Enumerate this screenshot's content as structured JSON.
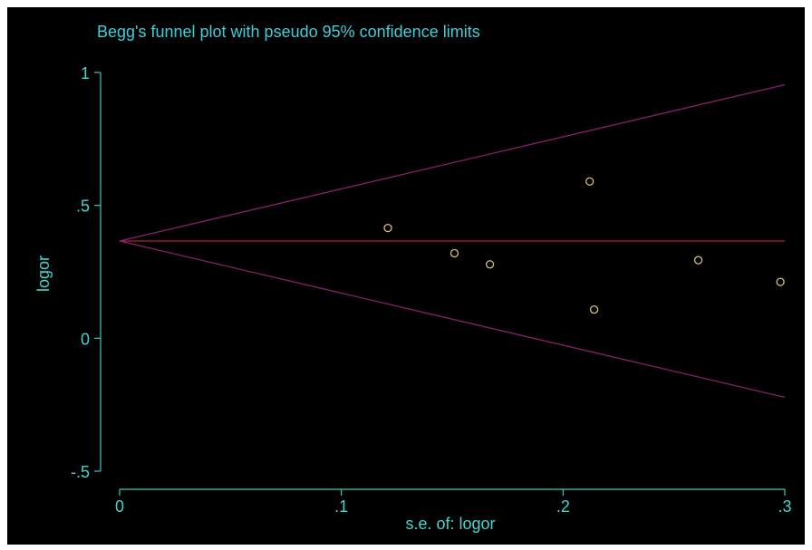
{
  "chart_data": {
    "type": "scatter",
    "title": "Begg's funnel plot with pseudo 95% confidence limits",
    "xlabel": "s.e. of: logor",
    "ylabel": "logor",
    "xlim": [
      0,
      0.3
    ],
    "ylim": [
      -0.5,
      1
    ],
    "xticks": [
      {
        "value": 0,
        "label": "0"
      },
      {
        "value": 0.1,
        "label": ".1"
      },
      {
        "value": 0.2,
        "label": ".2"
      },
      {
        "value": 0.3,
        "label": ".3"
      }
    ],
    "yticks": [
      {
        "value": -0.5,
        "label": "-.5"
      },
      {
        "value": 0,
        "label": "0"
      },
      {
        "value": 0.5,
        "label": ".5"
      },
      {
        "value": 1,
        "label": "1"
      }
    ],
    "pooled_estimate": 0.366,
    "confidence_limits": {
      "upper_at_max_se": 0.954,
      "lower_at_max_se": -0.222
    },
    "points": [
      {
        "x": 0.121,
        "y": 0.415
      },
      {
        "x": 0.151,
        "y": 0.32
      },
      {
        "x": 0.167,
        "y": 0.278
      },
      {
        "x": 0.212,
        "y": 0.59
      },
      {
        "x": 0.214,
        "y": 0.108
      },
      {
        "x": 0.261,
        "y": 0.294
      },
      {
        "x": 0.298,
        "y": 0.212
      }
    ],
    "grid": false,
    "colors": {
      "background": "#000000",
      "axes": "#40c8c0",
      "text": "#40d8d0",
      "title": "#3ccfdc",
      "pooled_line": "#b0203a",
      "limit_lines": "#8a1e6e",
      "points": "#d8c070"
    }
  }
}
